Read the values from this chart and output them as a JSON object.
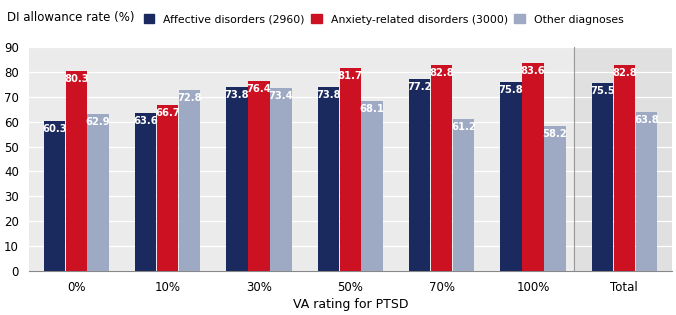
{
  "categories": [
    "0%",
    "10%",
    "30%",
    "50%",
    "70%",
    "100%",
    "Total"
  ],
  "series": {
    "Affective disorders (2960)": [
      60.3,
      63.6,
      73.8,
      73.8,
      77.2,
      75.8,
      75.5
    ],
    "Anxiety-related disorders (3000)": [
      80.3,
      66.7,
      76.4,
      81.7,
      82.8,
      83.6,
      82.8
    ],
    "Other diagnoses": [
      62.9,
      72.8,
      73.4,
      68.1,
      61.2,
      58.2,
      63.8
    ]
  },
  "colors": {
    "Affective disorders (2960)": "#1b2a5e",
    "Anxiety-related disorders (3000)": "#cc1122",
    "Other diagnoses": "#9eaac4"
  },
  "ylabel": "DI allowance rate (%)",
  "xlabel": "VA rating for PTSD",
  "ylim": [
    0,
    90
  ],
  "yticks": [
    0,
    10,
    20,
    30,
    40,
    50,
    60,
    70,
    80,
    90
  ],
  "total_bg_color": "#e0e0e0",
  "bar_width": 0.24,
  "label_fontsize": 7.2,
  "axis_label_fontsize": 9,
  "tick_fontsize": 8.5,
  "grid_color": "#ffffff",
  "plot_bg_color": "#ebebeb"
}
